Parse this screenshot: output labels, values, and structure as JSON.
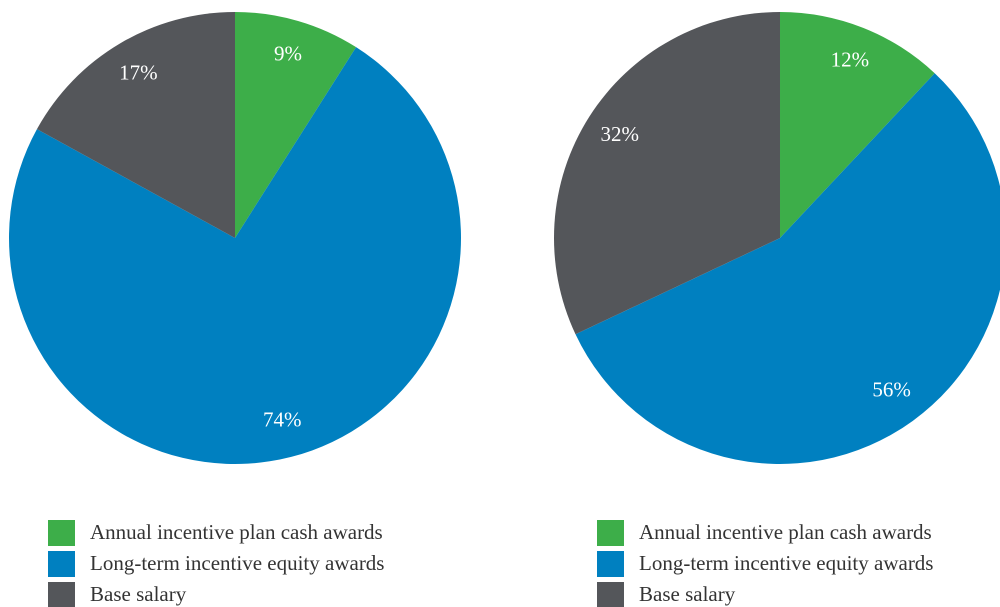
{
  "chart_data": [
    {
      "type": "pie",
      "categories": [
        "Annual incentive plan cash awards",
        "Long-term incentive equity awards",
        "Base salary"
      ],
      "values": [
        9,
        74,
        17
      ],
      "value_labels": [
        "9%",
        "74%",
        "17%"
      ],
      "colors": [
        "#3dae49",
        "#0080c0",
        "#54565a"
      ]
    },
    {
      "type": "pie",
      "categories": [
        "Annual incentive plan cash awards",
        "Long-term incentive equity awards",
        "Base salary"
      ],
      "values": [
        12,
        56,
        32
      ],
      "value_labels": [
        "12%",
        "56%",
        "32%"
      ],
      "colors": [
        "#3dae49",
        "#0080c0",
        "#54565a"
      ]
    }
  ]
}
